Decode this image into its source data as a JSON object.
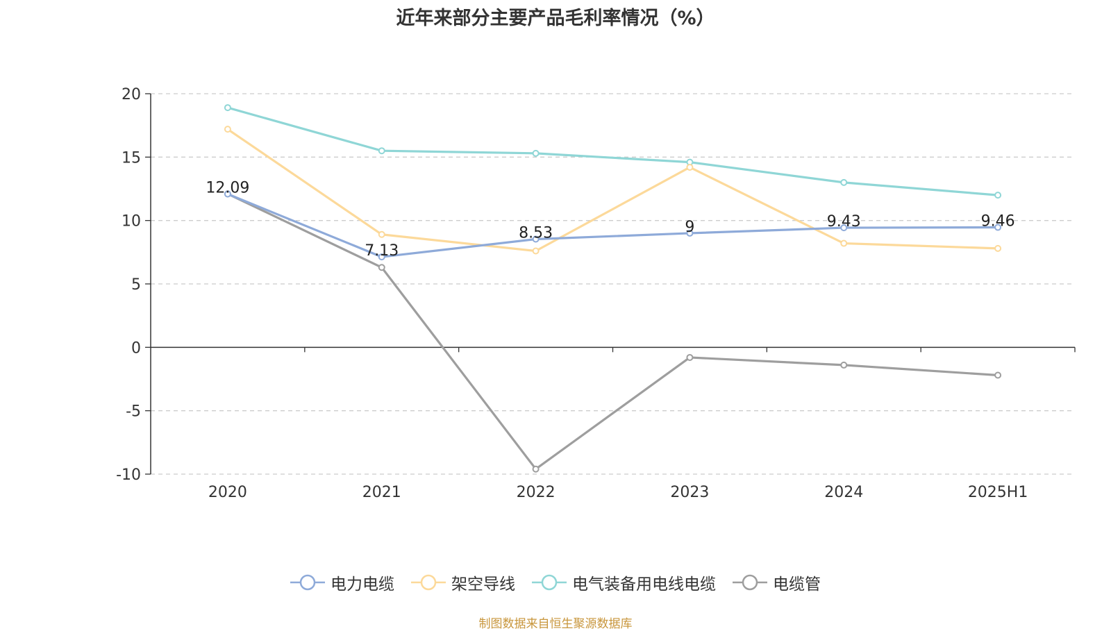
{
  "chart_data": {
    "type": "line",
    "title": "近年来部分主要产品毛利率情况（%）",
    "categories": [
      "2020",
      "2021",
      "2022",
      "2023",
      "2024",
      "2025H1"
    ],
    "ylim": [
      -10,
      20
    ],
    "yticks": [
      -10,
      -5,
      0,
      5,
      10,
      15,
      20
    ],
    "grid": true,
    "legend_position": "bottom",
    "series": [
      {
        "name": "电力电缆",
        "color": "#8eaad9",
        "values": [
          12.09,
          7.13,
          8.53,
          9,
          9.43,
          9.46
        ],
        "labels": [
          "12.09",
          "7.13",
          "8.53",
          "9",
          "9.43",
          "9.46"
        ]
      },
      {
        "name": "架空导线",
        "color": "#fcd99a",
        "values": [
          17.2,
          8.9,
          7.6,
          14.2,
          8.2,
          7.8
        ]
      },
      {
        "name": "电气装备用电线电缆",
        "color": "#8fd6d6",
        "values": [
          18.9,
          15.5,
          15.3,
          14.6,
          13.0,
          12.0
        ]
      },
      {
        "name": "电缆管",
        "color": "#9e9e9e",
        "values": [
          12.1,
          6.3,
          -9.6,
          -0.8,
          -1.4,
          -2.2
        ]
      }
    ]
  },
  "source": "制图数据来自恒生聚源数据库"
}
